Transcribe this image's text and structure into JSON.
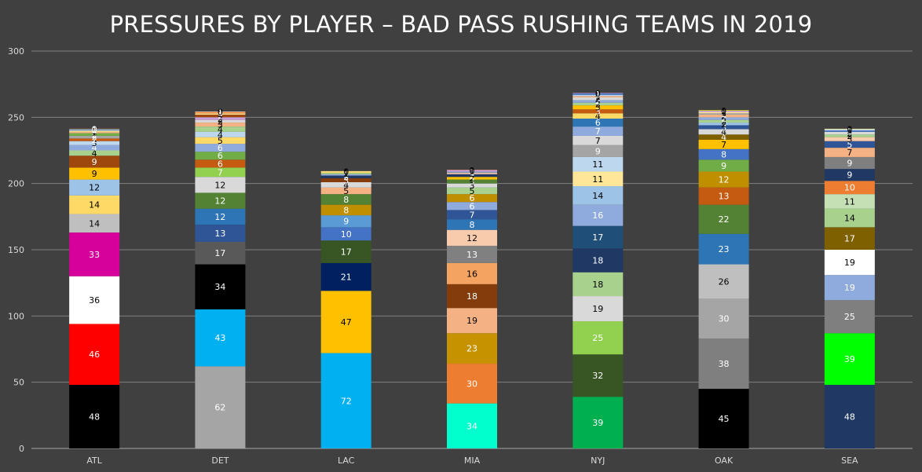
{
  "chart_data": {
    "type": "bar",
    "stacked": true,
    "title": "PRESSURES BY PLAYER – BAD PASS RUSHING TEAMS IN 2019",
    "xlabel": "",
    "ylabel": "",
    "ylim": [
      0,
      300
    ],
    "yticks": [
      0,
      50,
      100,
      150,
      200,
      250,
      300
    ],
    "grid": true,
    "categories": [
      "ATL",
      "DET",
      "LAC",
      "MIA",
      "NYJ",
      "OAK",
      "SEA"
    ],
    "bars": [
      {
        "category": "ATL",
        "segments": [
          {
            "value": 48,
            "color": "#000000"
          },
          {
            "value": 46,
            "color": "#ff0000"
          },
          {
            "value": 36,
            "color": "#ffffff"
          },
          {
            "value": 33,
            "color": "#d6009a"
          },
          {
            "value": 14,
            "color": "#bfbfbf"
          },
          {
            "value": 14,
            "color": "#ffd966"
          },
          {
            "value": 12,
            "color": "#9dc3e6"
          },
          {
            "value": 9,
            "color": "#ffc000"
          },
          {
            "value": 9,
            "color": "#9e480e"
          },
          {
            "value": 4,
            "color": "#a9d18e"
          },
          {
            "value": 4,
            "color": "#8faadc"
          },
          {
            "value": 3,
            "color": "#bdd7ee"
          },
          {
            "value": 2,
            "color": "#c55a11"
          },
          {
            "value": 2,
            "color": "#a5a5a5"
          },
          {
            "value": 2,
            "color": "#70ad47"
          },
          {
            "value": 1,
            "color": "#f4b183"
          },
          {
            "value": 1,
            "color": "#ffe699"
          },
          {
            "value": 1,
            "color": "#5b9bd5"
          },
          {
            "value": 0,
            "color": "#ed7d31"
          }
        ]
      },
      {
        "category": "DET",
        "segments": [
          {
            "value": 62,
            "color": "#a5a5a5"
          },
          {
            "value": 43,
            "color": "#00b0f0"
          },
          {
            "value": 34,
            "color": "#000000"
          },
          {
            "value": 17,
            "color": "#595959"
          },
          {
            "value": 13,
            "color": "#2f5597"
          },
          {
            "value": 12,
            "color": "#2e75b6"
          },
          {
            "value": 12,
            "color": "#548235"
          },
          {
            "value": 12,
            "color": "#d9d9d9"
          },
          {
            "value": 7,
            "color": "#92d050"
          },
          {
            "value": 6,
            "color": "#c55a11"
          },
          {
            "value": 6,
            "color": "#70ad47"
          },
          {
            "value": 6,
            "color": "#8faadc"
          },
          {
            "value": 5,
            "color": "#ffd966"
          },
          {
            "value": 4,
            "color": "#bdd7ee"
          },
          {
            "value": 4,
            "color": "#a9d18e"
          },
          {
            "value": 3,
            "color": "#f4b183"
          },
          {
            "value": 2,
            "color": "#d9d9d9"
          },
          {
            "value": 2,
            "color": "#c9a0dc"
          },
          {
            "value": 2,
            "color": "#9e480e"
          },
          {
            "value": 1,
            "color": "#ffe699"
          },
          {
            "value": 1,
            "color": "#ed7d31"
          },
          {
            "value": 0,
            "color": "#ffffff"
          }
        ]
      },
      {
        "category": "LAC",
        "segments": [
          {
            "value": 72,
            "color": "#00b0f0"
          },
          {
            "value": 47,
            "color": "#ffc000"
          },
          {
            "value": 21,
            "color": "#002060"
          },
          {
            "value": 17,
            "color": "#375623"
          },
          {
            "value": 10,
            "color": "#4472c4"
          },
          {
            "value": 9,
            "color": "#5b9bd5"
          },
          {
            "value": 8,
            "color": "#bf8f00"
          },
          {
            "value": 8,
            "color": "#548235"
          },
          {
            "value": 5,
            "color": "#f4b183"
          },
          {
            "value": 4,
            "color": "#d9d9d9"
          },
          {
            "value": 3,
            "color": "#843c0c"
          },
          {
            "value": 2,
            "color": "#1f3864"
          },
          {
            "value": 1,
            "color": "#8faadc"
          },
          {
            "value": 1,
            "color": "#a9d18e"
          },
          {
            "value": 1,
            "color": "#ffd966"
          },
          {
            "value": 0,
            "color": "#ffe699"
          }
        ]
      },
      {
        "category": "MIA",
        "segments": [
          {
            "value": 34,
            "color": "#00ffcc"
          },
          {
            "value": 30,
            "color": "#ed7d31"
          },
          {
            "value": 23,
            "color": "#c69200"
          },
          {
            "value": 19,
            "color": "#f4b183"
          },
          {
            "value": 18,
            "color": "#843c0c"
          },
          {
            "value": 16,
            "color": "#f4a460"
          },
          {
            "value": 13,
            "color": "#808080"
          },
          {
            "value": 12,
            "color": "#f8cbad"
          },
          {
            "value": 8,
            "color": "#2e75b6"
          },
          {
            "value": 7,
            "color": "#2f5597"
          },
          {
            "value": 6,
            "color": "#8faadc"
          },
          {
            "value": 6,
            "color": "#bf8f00"
          },
          {
            "value": 5,
            "color": "#a9d18e"
          },
          {
            "value": 3,
            "color": "#d9d9d9"
          },
          {
            "value": 3,
            "color": "#548235"
          },
          {
            "value": 2,
            "color": "#ffc000"
          },
          {
            "value": 2,
            "color": "#1f3864"
          },
          {
            "value": 1,
            "color": "#f8cbad"
          },
          {
            "value": 1,
            "color": "#8497b0"
          },
          {
            "value": 1,
            "color": "#c9a0dc"
          },
          {
            "value": 0,
            "color": "#ff9999"
          }
        ]
      },
      {
        "category": "NYJ",
        "segments": [
          {
            "value": 39,
            "color": "#00b050"
          },
          {
            "value": 32,
            "color": "#375623"
          },
          {
            "value": 25,
            "color": "#92d050"
          },
          {
            "value": 19,
            "color": "#d9d9d9"
          },
          {
            "value": 18,
            "color": "#a9d18e"
          },
          {
            "value": 18,
            "color": "#1f3864"
          },
          {
            "value": 17,
            "color": "#1f4e79"
          },
          {
            "value": 16,
            "color": "#8faadc"
          },
          {
            "value": 14,
            "color": "#9dc3e6"
          },
          {
            "value": 11,
            "color": "#ffe699"
          },
          {
            "value": 11,
            "color": "#bdd7ee"
          },
          {
            "value": 9,
            "color": "#a5a5a5"
          },
          {
            "value": 7,
            "color": "#d9d9d9"
          },
          {
            "value": 7,
            "color": "#8faadc"
          },
          {
            "value": 6,
            "color": "#2e75b6"
          },
          {
            "value": 4,
            "color": "#ffd966"
          },
          {
            "value": 3,
            "color": "#c55a11"
          },
          {
            "value": 3,
            "color": "#ffc000"
          },
          {
            "value": 2,
            "color": "#a9d18e"
          },
          {
            "value": 2,
            "color": "#8faadc"
          },
          {
            "value": 2,
            "color": "#d9d9d9"
          },
          {
            "value": 1,
            "color": "#f4b183"
          },
          {
            "value": 1,
            "color": "#bdd7ee"
          },
          {
            "value": 1,
            "color": "#4472c4"
          },
          {
            "value": 0,
            "color": "#c9a0dc"
          }
        ]
      },
      {
        "category": "OAK",
        "segments": [
          {
            "value": 45,
            "color": "#000000"
          },
          {
            "value": 38,
            "color": "#7f7f7f"
          },
          {
            "value": 30,
            "color": "#a5a5a5"
          },
          {
            "value": 26,
            "color": "#bfbfbf"
          },
          {
            "value": 23,
            "color": "#2e75b6"
          },
          {
            "value": 22,
            "color": "#548235"
          },
          {
            "value": 13,
            "color": "#c55a11"
          },
          {
            "value": 12,
            "color": "#bf8f00"
          },
          {
            "value": 9,
            "color": "#70ad47"
          },
          {
            "value": 8,
            "color": "#4472c4"
          },
          {
            "value": 7,
            "color": "#ffc000"
          },
          {
            "value": 4,
            "color": "#7f6000"
          },
          {
            "value": 4,
            "color": "#d9d9d9"
          },
          {
            "value": 3,
            "color": "#2f5597"
          },
          {
            "value": 2,
            "color": "#9dc3e6"
          },
          {
            "value": 2,
            "color": "#a9d18e"
          },
          {
            "value": 2,
            "color": "#8faadc"
          },
          {
            "value": 2,
            "color": "#f4b183"
          },
          {
            "value": 1,
            "color": "#a5a5a5"
          },
          {
            "value": 1,
            "color": "#ffe699"
          },
          {
            "value": 1,
            "color": "#c9a0dc"
          },
          {
            "value": 0,
            "color": "#ffff00"
          }
        ]
      },
      {
        "category": "SEA",
        "segments": [
          {
            "value": 48,
            "color": "#1f3864"
          },
          {
            "value": 39,
            "color": "#00ff00"
          },
          {
            "value": 25,
            "color": "#7f7f7f"
          },
          {
            "value": 19,
            "color": "#8faadc"
          },
          {
            "value": 19,
            "color": "#ffffff"
          },
          {
            "value": 17,
            "color": "#7f6000"
          },
          {
            "value": 14,
            "color": "#a9d18e"
          },
          {
            "value": 11,
            "color": "#c5e0b4"
          },
          {
            "value": 10,
            "color": "#ed7d31"
          },
          {
            "value": 9,
            "color": "#203864"
          },
          {
            "value": 9,
            "color": "#7f7f7f"
          },
          {
            "value": 7,
            "color": "#f4b183"
          },
          {
            "value": 5,
            "color": "#2f5597"
          },
          {
            "value": 3,
            "color": "#f8cbad"
          },
          {
            "value": 2,
            "color": "#a9d18e"
          },
          {
            "value": 2,
            "color": "#d9d9d9"
          },
          {
            "value": 1,
            "color": "#4472c4"
          },
          {
            "value": 1,
            "color": "#bdd7ee"
          },
          {
            "value": 0,
            "color": "#ffd966"
          }
        ]
      }
    ]
  }
}
